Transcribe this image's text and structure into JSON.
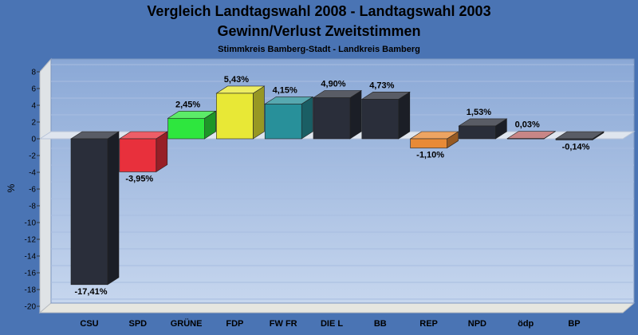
{
  "chart_data": {
    "type": "bar",
    "title": "Vergleich Landtagswahl 2008 - Landtagswahl 2003",
    "subtitle": "Gewinn/Verlust Zweitstimmen",
    "subtitle2": "Stimmkreis Bamberg-Stadt - Landkreis Bamberg",
    "xlabel": "",
    "ylabel": "%",
    "ylim": [
      -20,
      8
    ],
    "yticks": [
      8,
      6,
      4,
      2,
      0,
      -2,
      -4,
      -6,
      -8,
      -10,
      -12,
      -14,
      -16,
      -18,
      -20
    ],
    "grid": true,
    "legend": "none",
    "categories": [
      "CSU",
      "SPD",
      "GRÜNE",
      "FDP",
      "FW FR",
      "DIE L",
      "BB",
      "REP",
      "NPD",
      "ödp",
      "BP"
    ],
    "values": [
      -17.41,
      -3.95,
      2.45,
      5.43,
      4.15,
      4.9,
      4.73,
      -1.1,
      1.53,
      0.03,
      -0.14
    ],
    "value_labels": [
      "-17,41%",
      "-3,95%",
      "2,45%",
      "5,43%",
      "4,15%",
      "4,90%",
      "4,73%",
      "-1,10%",
      "1,53%",
      "0,03%",
      "-0,14%"
    ],
    "colors": [
      "#2a2e3a",
      "#e8303c",
      "#2ee63e",
      "#e8e836",
      "#28909a",
      "#2a2e3a",
      "#2a2e3a",
      "#e88a36",
      "#2a2e3a",
      "#b86464",
      "#2a2e3a"
    ]
  }
}
